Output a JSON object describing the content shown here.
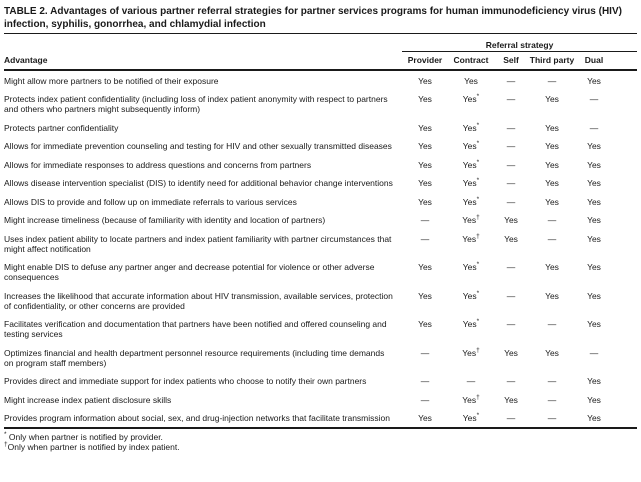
{
  "title": "TABLE 2. Advantages of various partner referral strategies for partner services programs for human immunodeficiency virus (HIV) infection, syphilis, gonorrhea, and chlamydial infection",
  "table": {
    "group_header": "Referral strategy",
    "advantage_header": "Advantage",
    "columns": [
      "Provider",
      "Contract",
      "Self",
      "Third party",
      "Dual"
    ],
    "rows": [
      {
        "advantage": "Might allow more partners to be notified of their exposure",
        "values": [
          "Yes",
          "Yes",
          "—",
          "—",
          "Yes"
        ]
      },
      {
        "advantage": "Protects index patient confidentiality (including loss of index patient anonymity with respect to partners and others who partners might subsequently inform)",
        "values": [
          "Yes",
          "Yes*",
          "—",
          "Yes",
          "—"
        ]
      },
      {
        "advantage": "Protects partner confidentiality",
        "values": [
          "Yes",
          "Yes*",
          "—",
          "Yes",
          "—"
        ]
      },
      {
        "advantage": "Allows for immediate prevention counseling and testing for HIV and other sexually transmitted diseases",
        "values": [
          "Yes",
          "Yes*",
          "—",
          "Yes",
          "Yes"
        ]
      },
      {
        "advantage": "Allows for immediate responses to address questions and concerns from partners",
        "values": [
          "Yes",
          "Yes*",
          "—",
          "Yes",
          "Yes"
        ]
      },
      {
        "advantage": "Allows disease intervention specialist (DIS) to identify need for additional behavior change interventions",
        "values": [
          "Yes",
          "Yes*",
          "—",
          "Yes",
          "Yes"
        ]
      },
      {
        "advantage": "Allows DIS to provide and follow up on immediate referrals to various services",
        "values": [
          "Yes",
          "Yes*",
          "—",
          "Yes",
          "Yes"
        ]
      },
      {
        "advantage": "Might increase timeliness (because of familiarity with identity and location of partners)",
        "values": [
          "—",
          "Yes†",
          "Yes",
          "—",
          "Yes"
        ]
      },
      {
        "advantage": "Uses index patient ability to locate partners and index patient familiarity with partner circumstances that might affect notification",
        "values": [
          "—",
          "Yes†",
          "Yes",
          "—",
          "Yes"
        ]
      },
      {
        "advantage": "Might enable DIS to defuse any partner anger and decrease potential for violence or other adverse consequences",
        "values": [
          "Yes",
          "Yes*",
          "—",
          "Yes",
          "Yes"
        ]
      },
      {
        "advantage": "Increases the likelihood that accurate information about HIV transmission, available services, protection of confidentiality, or other concerns are provided",
        "values": [
          "Yes",
          "Yes*",
          "—",
          "Yes",
          "Yes"
        ]
      },
      {
        "advantage": "Facilitates verification and documentation that partners have been notified and offered counseling and testing services",
        "values": [
          "Yes",
          "Yes*",
          "—",
          "—",
          "Yes"
        ]
      },
      {
        "advantage": "Optimizes financial and health department personnel resource requirements (including time demands on program staff members)",
        "values": [
          "—",
          "Yes†",
          "Yes",
          "Yes",
          "—"
        ]
      },
      {
        "advantage": "Provides direct and immediate support for index patients who choose to notify their own partners",
        "values": [
          "—",
          "—",
          "—",
          "—",
          "Yes"
        ]
      },
      {
        "advantage": "Might increase index patient disclosure skills",
        "values": [
          "—",
          "Yes†",
          "Yes",
          "—",
          "Yes"
        ]
      },
      {
        "advantage": "Provides program information about social, sex, and drug-injection networks that facilitate transmission",
        "values": [
          "Yes",
          "Yes*",
          "—",
          "—",
          "Yes"
        ]
      }
    ]
  },
  "footnotes": [
    {
      "marker": "*",
      "text": "Only when partner is notified by provider."
    },
    {
      "marker": "†",
      "text": "Only when partner is notified by index patient."
    }
  ]
}
